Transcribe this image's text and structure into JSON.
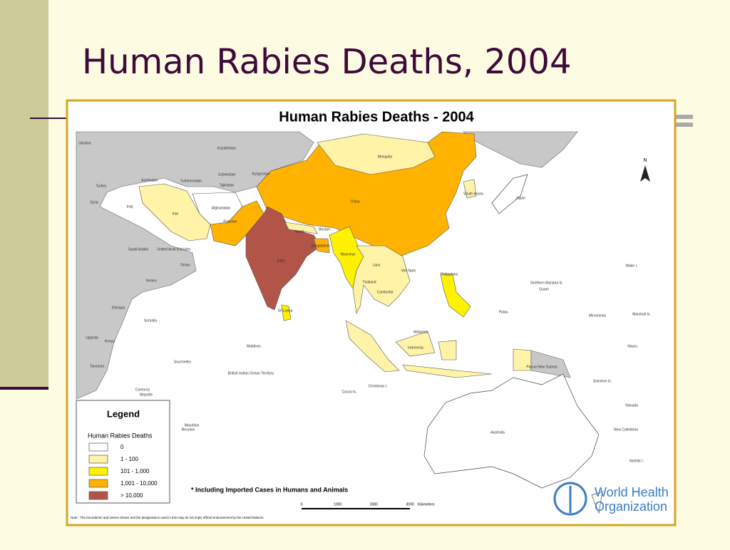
{
  "slide": {
    "title": "Human Rabies Deaths, 2004"
  },
  "map": {
    "title": "Human Rabies Deaths - 2004",
    "legend": {
      "title": "Legend",
      "subtitle": "Human Rabies Deaths",
      "items": [
        {
          "label": "0",
          "color": "#ffffff"
        },
        {
          "label": "1 - 100",
          "color": "#fff3a8"
        },
        {
          "label": "101 - 1,000",
          "color": "#fff200"
        },
        {
          "label": "1,001 - 10,000",
          "color": "#ffb300"
        },
        {
          "label": "> 10,000",
          "color": "#b35448"
        }
      ]
    },
    "footnote": "* Including Imported Cases in Humans and Animals",
    "scale": {
      "ticks": [
        "0",
        "1000",
        "2000",
        "3000"
      ],
      "unit": "Kilometers"
    },
    "note": "Note : The boundaries and names shown and the designations used in this map do not imply official endorsement by the United Nations.",
    "north": "N",
    "logo": [
      "World Health",
      "Organization"
    ],
    "country_labels": [
      "Kazakhstan",
      "Mongolia",
      "China",
      "Iran",
      "Afghanistan",
      "Pakistan",
      "India",
      "Myanmar",
      "Thailand",
      "Indonesia",
      "Australia",
      "Philippines",
      "Sri Lanka",
      "Maldives",
      "Saudi Arabia",
      "Yemen",
      "Ethiopia",
      "Somalia",
      "Kenya",
      "Tanzania",
      "Turkey",
      "Japan",
      "Papua New Guinea",
      "Seychelles",
      "Turkmenistan",
      "Uzbekistan",
      "Kyrgyzstan",
      "Tajikistan",
      "Nepal",
      "Bhutan",
      "Bangladesh",
      "Laos",
      "Cambodia",
      "Viet Nam",
      "Malaysia",
      "South Korea",
      "Palau",
      "Micronesia",
      "Nauru",
      "New Caledonia",
      "Norfolk I.",
      "Christmas I.",
      "Cocos Is.",
      "British Indian Ocean Territory",
      "Mauritius",
      "Reunion",
      "Comoros",
      "Mayotte",
      "United Arab Emirates",
      "Oman",
      "Uganda",
      "Ukraine",
      "Syria",
      "Iraq",
      "Northern Mariana Is.",
      "Guam",
      "Marshall Is.",
      "Wake I.",
      "Solomon Is.",
      "Vanuatu",
      "Azerbaijan"
    ]
  }
}
